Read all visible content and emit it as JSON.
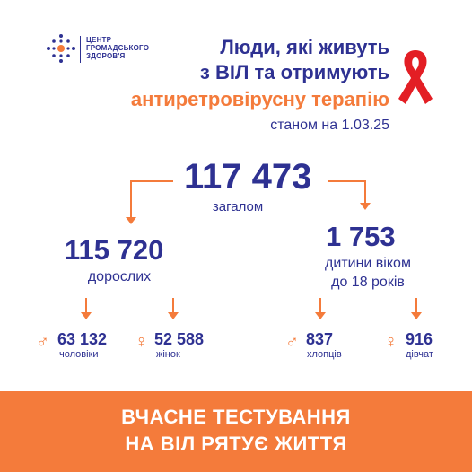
{
  "logo": {
    "line1": "ЦЕНТР",
    "line2": "ГРОМАДСЬКОГО",
    "line3": "ЗДОРОВ'Я",
    "icon": "snowflake-dots-icon"
  },
  "header": {
    "line1": "Люди, які живуть",
    "line2": "з ВІЛ та отримують",
    "line3": "антиретровірусну терапію",
    "date": "станом на 1.03.25",
    "ribbon_icon": "red-ribbon-icon"
  },
  "total": {
    "value": "117 473",
    "label": "загалом"
  },
  "adults": {
    "value": "115 720",
    "label": "дорослих",
    "men": {
      "value": "63 132",
      "label": "чоловіки",
      "symbol": "♂"
    },
    "women": {
      "value": "52 588",
      "label": "жінок",
      "symbol": "♀"
    }
  },
  "children": {
    "value": "1 753",
    "label_line1": "дитини віком",
    "label_line2": "до 18 років",
    "boys": {
      "value": "837",
      "label": "хлопців",
      "symbol": "♂"
    },
    "girls": {
      "value": "916",
      "label": "дівчат",
      "symbol": "♀"
    }
  },
  "banner": {
    "line1": "ВЧАСНЕ ТЕСТУВАННЯ",
    "line2": "НА ВІЛ РЯТУЄ ЖИТТЯ"
  },
  "colors": {
    "blue": "#2e3192",
    "orange": "#f47b3b",
    "ribbon": "#e31e24"
  }
}
